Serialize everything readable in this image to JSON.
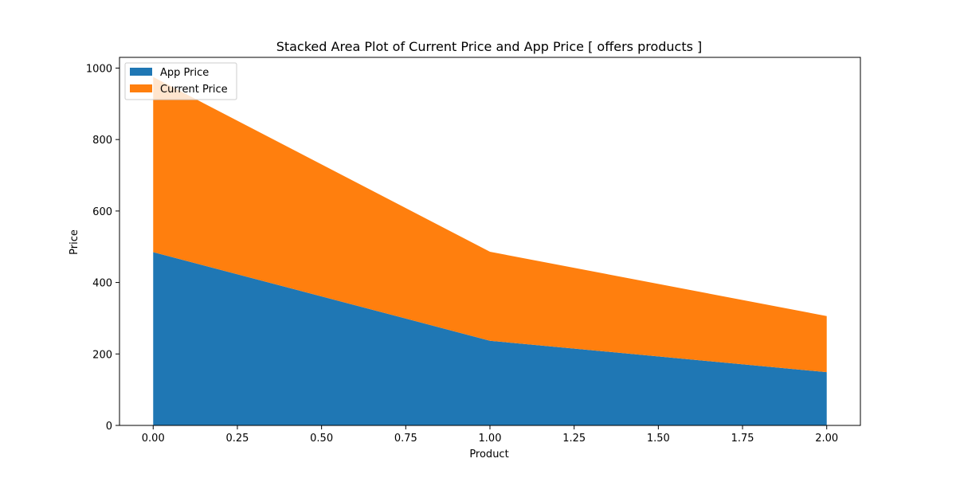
{
  "chart_data": {
    "type": "area",
    "stacked": true,
    "title": "Stacked Area Plot of Current Price and App Price [ offers products ]",
    "xlabel": "Product",
    "ylabel": "Price",
    "x": [
      0,
      1,
      2
    ],
    "xlim": [
      -0.1,
      2.1
    ],
    "ylim": [
      0,
      1030
    ],
    "xticks": [
      0.0,
      0.25,
      0.5,
      0.75,
      1.0,
      1.25,
      1.5,
      1.75,
      2.0
    ],
    "xtick_labels": [
      "0.00",
      "0.25",
      "0.50",
      "0.75",
      "1.00",
      "1.25",
      "1.50",
      "1.75",
      "2.00"
    ],
    "yticks": [
      0,
      200,
      400,
      600,
      800,
      1000
    ],
    "ytick_labels": [
      "0",
      "200",
      "400",
      "600",
      "800",
      "1000"
    ],
    "grid": false,
    "legend_position": "top-left",
    "series": [
      {
        "name": "App Price",
        "values": [
          485,
          237,
          149
        ],
        "color": "#1f77b4"
      },
      {
        "name": "Current Price",
        "values": [
          490,
          249,
          157
        ],
        "color": "#ff7f0e"
      }
    ]
  }
}
